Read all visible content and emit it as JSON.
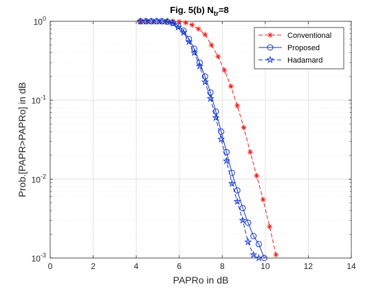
{
  "chart_data": {
    "type": "line",
    "title": {
      "main": "Fig. 5(b) N",
      "sub": "tr",
      "suffix": "=8"
    },
    "xlabel": "PAPRo in dB",
    "ylabel": "Prob.[PAPR>PAPRo] in dB",
    "xlim": [
      0,
      14
    ],
    "ylim": [
      0.001,
      1
    ],
    "yscale": "log",
    "grid": true,
    "legend_position": "top-right",
    "xticks": [
      {
        "value": 0,
        "label": "0"
      },
      {
        "value": 2,
        "label": "2"
      },
      {
        "value": 4,
        "label": "4"
      },
      {
        "value": 6,
        "label": "6"
      },
      {
        "value": 8,
        "label": "8"
      },
      {
        "value": 10,
        "label": "10"
      },
      {
        "value": 12,
        "label": "12"
      },
      {
        "value": 14,
        "label": "14"
      }
    ],
    "yticks": [
      {
        "value": 0.001,
        "base": "10",
        "exp": "-3"
      },
      {
        "value": 0.01,
        "base": "10",
        "exp": "-2"
      },
      {
        "value": 0.1,
        "base": "10",
        "exp": "-1"
      },
      {
        "value": 1,
        "base": "10",
        "exp": "0"
      }
    ],
    "series": [
      {
        "name": "Conventional",
        "color": "#e8201c",
        "dash": "dashed",
        "marker": "asterisk",
        "x": [
          4.2,
          4.5,
          4.8,
          5.1,
          5.4,
          5.7,
          6.0,
          6.3,
          6.6,
          6.9,
          7.2,
          7.5,
          7.8,
          8.1,
          8.4,
          8.7,
          9.0,
          9.3,
          9.6,
          9.9,
          10.2,
          10.5
        ],
        "y": [
          1.0,
          1.0,
          1.0,
          1.0,
          1.0,
          1.0,
          0.99,
          0.96,
          0.9,
          0.8,
          0.68,
          0.5,
          0.36,
          0.24,
          0.15,
          0.085,
          0.045,
          0.022,
          0.011,
          0.0055,
          0.0025,
          0.0011
        ]
      },
      {
        "name": "Proposed",
        "color": "#0b30c8",
        "dash": "solid",
        "marker": "circle",
        "x": [
          4.2,
          4.45,
          4.7,
          4.95,
          5.2,
          5.45,
          5.7,
          5.95,
          6.2,
          6.45,
          6.7,
          6.95,
          7.2,
          7.45,
          7.7,
          7.95,
          8.2,
          8.45,
          8.7,
          8.95,
          9.2,
          9.45,
          9.7,
          9.95
        ],
        "y": [
          1.0,
          1.0,
          1.0,
          1.0,
          1.0,
          0.99,
          0.96,
          0.88,
          0.76,
          0.6,
          0.45,
          0.3,
          0.2,
          0.125,
          0.072,
          0.04,
          0.022,
          0.012,
          0.0072,
          0.0043,
          0.0028,
          0.0019,
          0.0015,
          0.001
        ]
      },
      {
        "name": "Hadamard",
        "color": "#0b30c8",
        "dash": "dashed",
        "marker": "star",
        "x": [
          4.2,
          4.45,
          4.7,
          4.95,
          5.2,
          5.45,
          5.7,
          5.95,
          6.2,
          6.45,
          6.7,
          6.95,
          7.2,
          7.45,
          7.7,
          7.95,
          8.2,
          8.45,
          8.7,
          8.95,
          9.2,
          9.45,
          9.7
        ],
        "y": [
          1.0,
          1.0,
          1.0,
          1.0,
          1.0,
          0.99,
          0.94,
          0.84,
          0.72,
          0.55,
          0.4,
          0.27,
          0.17,
          0.105,
          0.06,
          0.032,
          0.017,
          0.0088,
          0.0052,
          0.003,
          0.0016,
          0.0011,
          0.001
        ]
      }
    ]
  }
}
